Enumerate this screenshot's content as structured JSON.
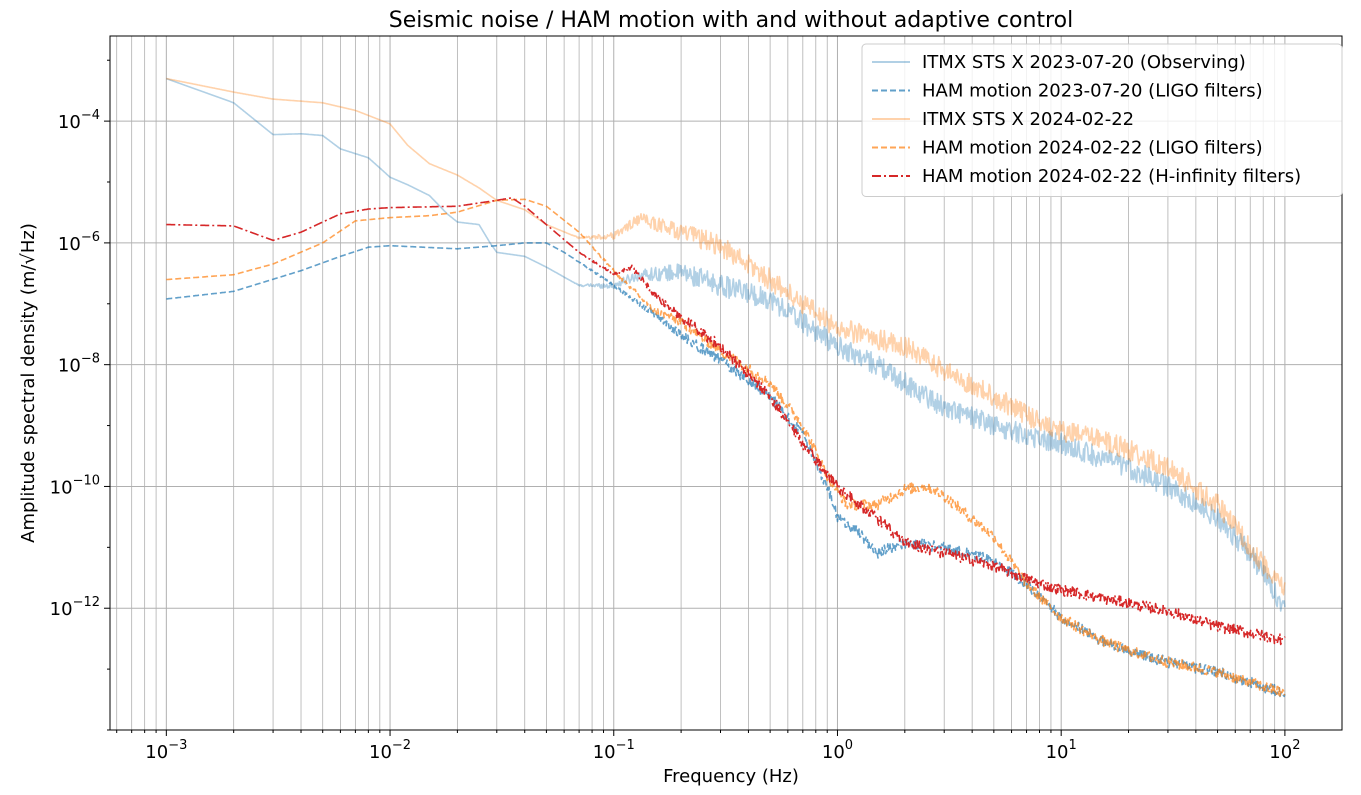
{
  "chart_data": {
    "type": "line",
    "title": "Seismic noise / HAM motion with and without adaptive control",
    "xlabel": "Frequency (Hz)",
    "ylabel": "Amplitude spectral density (m/√Hz)",
    "xscale": "log",
    "yscale": "log",
    "xlim": [
      0.00056,
      180
    ],
    "ylim": [
      1e-14,
      0.0025
    ],
    "grid": true,
    "legend_position": "top-right",
    "x_ticks": [
      {
        "value": 0.001,
        "mant": "10",
        "exp": "−3"
      },
      {
        "value": 0.01,
        "mant": "10",
        "exp": "−2"
      },
      {
        "value": 0.1,
        "mant": "10",
        "exp": "−1"
      },
      {
        "value": 1,
        "mant": "10",
        "exp": "0"
      },
      {
        "value": 10,
        "mant": "10",
        "exp": "1"
      },
      {
        "value": 100,
        "mant": "10",
        "exp": "2"
      }
    ],
    "y_ticks": [
      {
        "value": 1e-12,
        "mant": "10",
        "exp": "−12"
      },
      {
        "value": 1e-10,
        "mant": "10",
        "exp": "−10"
      },
      {
        "value": 1e-08,
        "mant": "10",
        "exp": "−8"
      },
      {
        "value": 1e-06,
        "mant": "10",
        "exp": "−6"
      },
      {
        "value": 0.0001,
        "mant": "10",
        "exp": "−4"
      }
    ],
    "series": [
      {
        "name": "ITMX STS X 2023-07-20 (Observing)",
        "color": "#1f77b4",
        "opacity": 0.35,
        "dash": "solid",
        "noise": 0.35,
        "points": [
          [
            0.001,
            0.0005
          ],
          [
            0.002,
            0.0002
          ],
          [
            0.003,
            6e-05
          ],
          [
            0.004,
            6.2e-05
          ],
          [
            0.005,
            5.8e-05
          ],
          [
            0.006,
            3.5e-05
          ],
          [
            0.008,
            2.5e-05
          ],
          [
            0.01,
            1.2e-05
          ],
          [
            0.012,
            9e-06
          ],
          [
            0.015,
            6e-06
          ],
          [
            0.018,
            3e-06
          ],
          [
            0.02,
            2.2e-06
          ],
          [
            0.025,
            2e-06
          ],
          [
            0.028,
            1e-06
          ],
          [
            0.03,
            7e-07
          ],
          [
            0.04,
            6e-07
          ],
          [
            0.05,
            4e-07
          ],
          [
            0.07,
            2e-07
          ],
          [
            0.1,
            2e-07
          ],
          [
            0.13,
            3e-07
          ],
          [
            0.2,
            3.3e-07
          ],
          [
            0.3,
            2e-07
          ],
          [
            0.5,
            1.2e-07
          ],
          [
            0.7,
            5e-08
          ],
          [
            1,
            2e-08
          ],
          [
            1.5,
            1e-08
          ],
          [
            2,
            5e-09
          ],
          [
            3,
            2e-09
          ],
          [
            5,
            1e-09
          ],
          [
            7,
            7e-10
          ],
          [
            10,
            5e-10
          ],
          [
            15,
            3e-10
          ],
          [
            20,
            2e-10
          ],
          [
            30,
            1e-10
          ],
          [
            50,
            3e-11
          ],
          [
            70,
            8e-12
          ],
          [
            100,
            1e-12
          ]
        ]
      },
      {
        "name": "HAM motion 2023-07-20 (LIGO filters)",
        "color": "#1f77b4",
        "opacity": 0.7,
        "dash": "6,3",
        "noise": 0.18,
        "points": [
          [
            0.001,
            1.2e-07
          ],
          [
            0.002,
            1.6e-07
          ],
          [
            0.004,
            3.5e-07
          ],
          [
            0.006,
            6e-07
          ],
          [
            0.008,
            8.5e-07
          ],
          [
            0.01,
            9e-07
          ],
          [
            0.02,
            8e-07
          ],
          [
            0.03,
            9e-07
          ],
          [
            0.04,
            1e-06
          ],
          [
            0.05,
            1e-06
          ],
          [
            0.06,
            7e-07
          ],
          [
            0.08,
            3.5e-07
          ],
          [
            0.1,
            2e-07
          ],
          [
            0.15,
            7e-08
          ],
          [
            0.2,
            3e-08
          ],
          [
            0.3,
            1.2e-08
          ],
          [
            0.5,
            3e-09
          ],
          [
            0.7,
            7e-10
          ],
          [
            0.9,
            1e-10
          ],
          [
            1.0,
            3e-11
          ],
          [
            1.2,
            2e-11
          ],
          [
            1.5,
            8e-12
          ],
          [
            2,
            1.2e-11
          ],
          [
            3,
            1e-11
          ],
          [
            5,
            6e-12
          ],
          [
            7,
            2.5e-12
          ],
          [
            10,
            7e-13
          ],
          [
            15,
            3e-13
          ],
          [
            20,
            2e-13
          ],
          [
            30,
            1.3e-13
          ],
          [
            50,
            9e-14
          ],
          [
            70,
            6e-14
          ],
          [
            100,
            4e-14
          ]
        ]
      },
      {
        "name": "ITMX STS X 2024-02-22",
        "color": "#ff7f0e",
        "opacity": 0.35,
        "dash": "solid",
        "noise": 0.35,
        "points": [
          [
            0.001,
            0.0005
          ],
          [
            0.002,
            0.0003
          ],
          [
            0.003,
            0.00023
          ],
          [
            0.005,
            0.0002
          ],
          [
            0.007,
            0.00015
          ],
          [
            0.01,
            9e-05
          ],
          [
            0.012,
            4e-05
          ],
          [
            0.015,
            2e-05
          ],
          [
            0.02,
            1.3e-05
          ],
          [
            0.025,
            8e-06
          ],
          [
            0.03,
            5e-06
          ],
          [
            0.04,
            3.5e-06
          ],
          [
            0.05,
            2e-06
          ],
          [
            0.07,
            1.2e-06
          ],
          [
            0.1,
            1.3e-06
          ],
          [
            0.13,
            2.5e-06
          ],
          [
            0.2,
            1.5e-06
          ],
          [
            0.3,
            9e-07
          ],
          [
            0.5,
            2.5e-07
          ],
          [
            0.7,
            1e-07
          ],
          [
            1,
            4e-08
          ],
          [
            2,
            2e-08
          ],
          [
            3,
            8e-09
          ],
          [
            5,
            3e-09
          ],
          [
            7,
            1.5e-09
          ],
          [
            10,
            8e-10
          ],
          [
            15,
            6e-10
          ],
          [
            20,
            4e-10
          ],
          [
            30,
            2e-10
          ],
          [
            50,
            5e-11
          ],
          [
            70,
            1e-11
          ],
          [
            100,
            2e-12
          ]
        ]
      },
      {
        "name": "HAM motion 2024-02-22 (LIGO filters)",
        "color": "#ff7f0e",
        "opacity": 0.7,
        "dash": "6,3",
        "noise": 0.18,
        "points": [
          [
            0.001,
            2.5e-07
          ],
          [
            0.002,
            3e-07
          ],
          [
            0.003,
            4.5e-07
          ],
          [
            0.005,
            1e-06
          ],
          [
            0.007,
            2.3e-06
          ],
          [
            0.01,
            2.6e-06
          ],
          [
            0.015,
            2.8e-06
          ],
          [
            0.02,
            3.2e-06
          ],
          [
            0.03,
            5e-06
          ],
          [
            0.04,
            5.2e-06
          ],
          [
            0.05,
            4e-06
          ],
          [
            0.07,
            1.5e-06
          ],
          [
            0.1,
            3.5e-07
          ],
          [
            0.15,
            8e-08
          ],
          [
            0.2,
            5e-08
          ],
          [
            0.3,
            1.7e-08
          ],
          [
            0.5,
            5e-09
          ],
          [
            0.7,
            1e-09
          ],
          [
            0.9,
            1.5e-10
          ],
          [
            1.1,
            5e-11
          ],
          [
            1.5,
            5e-11
          ],
          [
            2,
            9e-11
          ],
          [
            2.5,
            1e-10
          ],
          [
            3,
            7e-11
          ],
          [
            5,
            1.5e-11
          ],
          [
            7,
            2.5e-12
          ],
          [
            10,
            7e-13
          ],
          [
            15,
            3e-13
          ],
          [
            20,
            2e-13
          ],
          [
            30,
            1.3e-13
          ],
          [
            50,
            9e-14
          ],
          [
            70,
            6e-14
          ],
          [
            100,
            4e-14
          ]
        ]
      },
      {
        "name": "HAM motion 2024-02-22 (H-infinity filters)",
        "color": "#d62728",
        "opacity": 1,
        "dash": "9,3,2,3",
        "noise": 0.18,
        "points": [
          [
            0.001,
            2e-06
          ],
          [
            0.002,
            1.9e-06
          ],
          [
            0.003,
            1.1e-06
          ],
          [
            0.004,
            1.5e-06
          ],
          [
            0.005,
            2.2e-06
          ],
          [
            0.006,
            3e-06
          ],
          [
            0.008,
            3.6e-06
          ],
          [
            0.01,
            3.8e-06
          ],
          [
            0.02,
            4e-06
          ],
          [
            0.03,
            5e-06
          ],
          [
            0.035,
            5.5e-06
          ],
          [
            0.04,
            4e-06
          ],
          [
            0.05,
            2e-06
          ],
          [
            0.07,
            7e-07
          ],
          [
            0.1,
            3e-07
          ],
          [
            0.12,
            4e-07
          ],
          [
            0.15,
            1.5e-07
          ],
          [
            0.2,
            6e-08
          ],
          [
            0.3,
            2e-08
          ],
          [
            0.5,
            3e-09
          ],
          [
            0.7,
            5e-10
          ],
          [
            1,
            1e-10
          ],
          [
            1.5,
            3e-11
          ],
          [
            2,
            1.2e-11
          ],
          [
            3,
            8e-12
          ],
          [
            5,
            5e-12
          ],
          [
            7,
            3e-12
          ],
          [
            10,
            2e-12
          ],
          [
            20,
            1.2e-12
          ],
          [
            30,
            9e-13
          ],
          [
            50,
            5e-13
          ],
          [
            100,
            3e-13
          ]
        ]
      }
    ]
  }
}
